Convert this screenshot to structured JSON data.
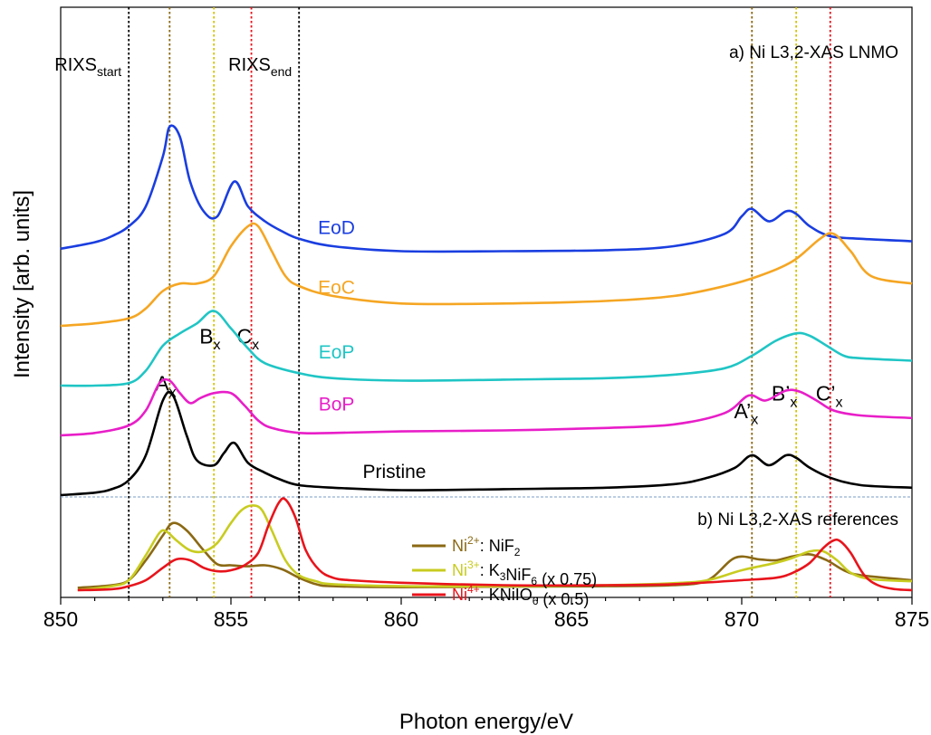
{
  "chart_data": {
    "type": "line",
    "xlabel": "Photon energy/eV",
    "ylabel": "Intensity [arb. units]",
    "xlim": [
      850,
      875
    ],
    "xticks": [
      850,
      855,
      860,
      865,
      870,
      875
    ],
    "y_ticks_shown": false,
    "grid": false,
    "panel_a_title": "a) Ni L3,2-XAS LNMO",
    "panel_b_title": "b) Ni L3,2-XAS references",
    "rixs_start": {
      "x": 852.0,
      "base": "RIXS",
      "sub": "start"
    },
    "rixs_end": {
      "x": 857.0,
      "base": "RIXS",
      "sub": "end"
    },
    "vlines": [
      {
        "x": 852.0,
        "color": "#000000"
      },
      {
        "x": 853.2,
        "color": "#8b6914"
      },
      {
        "x": 854.5,
        "color": "#d4c400"
      },
      {
        "x": 855.6,
        "color": "#e8141c"
      },
      {
        "x": 857.0,
        "color": "#000000"
      },
      {
        "x": 870.3,
        "color": "#8b6914"
      },
      {
        "x": 871.6,
        "color": "#d4c400"
      },
      {
        "x": 872.6,
        "color": "#e8141c"
      }
    ],
    "peak_labels": [
      {
        "id": "Ax",
        "base": "A",
        "sub": "x",
        "x": 853.2,
        "offset": 2.1
      },
      {
        "id": "Bx",
        "base": "B",
        "sub": "x",
        "x": 854.5,
        "offset": 3.05
      },
      {
        "id": "Cx",
        "base": "C",
        "sub": "x",
        "x": 855.6,
        "offset": 3.05
      },
      {
        "id": "A'x",
        "base": "A’",
        "sub": "x",
        "x": 870.2,
        "offset": 1.55
      },
      {
        "id": "B'x",
        "base": "B’",
        "sub": "x",
        "x": 871.3,
        "offset": 1.9
      },
      {
        "id": "C'x",
        "base": "C’",
        "sub": "x",
        "x": 872.6,
        "offset": 1.9
      }
    ],
    "series": [
      {
        "name": "EoD",
        "panel": "a",
        "color": "#1a3ee0",
        "offset": 4.6,
        "x": [
          850.0,
          851.0,
          851.5,
          852.0,
          852.5,
          853.0,
          853.2,
          853.5,
          853.8,
          854.2,
          854.6,
          855.1,
          855.5,
          856.0,
          856.5,
          857.0,
          858.0,
          860.0,
          863.0,
          866.0,
          868.0,
          869.5,
          870.0,
          870.3,
          870.8,
          871.3,
          871.6,
          872.0,
          872.6,
          873.5,
          875.0
        ],
        "y": [
          0.35,
          0.48,
          0.6,
          0.8,
          1.2,
          2.2,
          2.8,
          2.6,
          1.7,
          1.1,
          1.0,
          1.7,
          1.2,
          0.9,
          0.7,
          0.55,
          0.4,
          0.3,
          0.3,
          0.32,
          0.4,
          0.65,
          1.0,
          1.15,
          0.9,
          1.1,
          1.05,
          0.8,
          0.6,
          0.55,
          0.5
        ]
      },
      {
        "name": "EoC",
        "panel": "a",
        "color": "#f5a623",
        "offset": 3.4,
        "x": [
          850.0,
          851.0,
          852.0,
          852.5,
          853.0,
          853.5,
          854.0,
          854.5,
          855.0,
          855.5,
          855.8,
          856.2,
          856.6,
          857.0,
          858.0,
          860.0,
          863.0,
          866.0,
          868.0,
          869.5,
          870.5,
          871.5,
          872.3,
          872.7,
          873.2,
          873.8,
          875.0
        ],
        "y": [
          0.0,
          0.05,
          0.15,
          0.35,
          0.7,
          0.85,
          0.85,
          1.0,
          1.6,
          2.0,
          2.0,
          1.5,
          1.0,
          0.8,
          0.6,
          0.45,
          0.45,
          0.5,
          0.6,
          0.8,
          1.0,
          1.3,
          1.75,
          1.85,
          1.5,
          1.0,
          0.85
        ]
      },
      {
        "name": "EoP",
        "panel": "a",
        "color": "#20c5c5",
        "offset": 2.2,
        "x": [
          850.0,
          851.0,
          852.0,
          852.5,
          853.0,
          853.5,
          854.0,
          854.5,
          855.0,
          855.5,
          856.0,
          857.0,
          858.0,
          860.0,
          863.0,
          866.0,
          868.0,
          869.5,
          870.3,
          871.0,
          871.6,
          872.0,
          872.5,
          873.0,
          873.5,
          875.0
        ],
        "y": [
          0.0,
          0.0,
          0.05,
          0.3,
          0.8,
          1.05,
          1.25,
          1.5,
          1.15,
          0.75,
          0.45,
          0.25,
          0.15,
          0.1,
          0.12,
          0.15,
          0.22,
          0.35,
          0.6,
          0.9,
          1.05,
          1.0,
          0.8,
          0.6,
          0.55,
          0.5
        ]
      },
      {
        "name": "BoP",
        "panel": "a",
        "color": "#e81ec8",
        "offset": 1.2,
        "x": [
          850.0,
          851.0,
          852.0,
          852.5,
          852.9,
          853.2,
          853.5,
          853.8,
          854.1,
          854.5,
          855.0,
          855.4,
          855.8,
          856.2,
          857.0,
          858.0,
          860.0,
          863.0,
          866.0,
          868.0,
          869.5,
          870.2,
          870.7,
          871.3,
          871.7,
          872.2,
          872.7,
          873.5,
          875.0
        ],
        "y": [
          0.0,
          0.05,
          0.2,
          0.5,
          1.05,
          1.1,
          0.85,
          0.65,
          0.75,
          0.85,
          0.85,
          0.6,
          0.3,
          0.15,
          0.05,
          0.05,
          0.08,
          0.1,
          0.15,
          0.22,
          0.45,
          0.8,
          0.7,
          0.9,
          0.88,
          0.7,
          0.5,
          0.4,
          0.35
        ]
      },
      {
        "name": "Pristine",
        "panel": "a",
        "color": "#000000",
        "offset": 0.0,
        "x": [
          850.0,
          851.0,
          851.5,
          852.0,
          852.5,
          853.0,
          853.3,
          853.7,
          854.0,
          854.5,
          854.8,
          855.1,
          855.5,
          856.0,
          856.5,
          857.0,
          858.0,
          860.0,
          863.0,
          866.0,
          868.0,
          869.0,
          869.8,
          870.3,
          870.8,
          871.3,
          871.6,
          872.0,
          872.6,
          873.5,
          875.0
        ],
        "y": [
          0.0,
          0.05,
          0.12,
          0.3,
          0.8,
          1.9,
          2.0,
          1.2,
          0.7,
          0.6,
          0.85,
          1.05,
          0.65,
          0.45,
          0.3,
          0.2,
          0.15,
          0.1,
          0.12,
          0.15,
          0.22,
          0.35,
          0.55,
          0.8,
          0.6,
          0.8,
          0.75,
          0.55,
          0.35,
          0.2,
          0.15
        ]
      },
      {
        "name": "NiF2",
        "panel": "b",
        "color": "#8b6914",
        "offset": 0.0,
        "ion": "Ni",
        "ion_sup": "2+",
        "formula": [
          [
            "NiF",
            ""
          ],
          [
            "2",
            "sub"
          ]
        ],
        "note": "",
        "x": [
          850.5,
          851.5,
          852.0,
          852.5,
          853.0,
          853.3,
          853.7,
          854.2,
          854.6,
          855.0,
          855.5,
          856.0,
          856.5,
          857.0,
          857.5,
          858.0,
          860.0,
          863.0,
          866.0,
          868.0,
          869.0,
          869.8,
          870.5,
          871.0,
          871.5,
          872.0,
          872.5,
          873.0,
          873.5,
          875.0
        ],
        "y": [
          0.05,
          0.1,
          0.2,
          0.6,
          1.1,
          1.35,
          1.2,
          0.8,
          0.52,
          0.5,
          0.48,
          0.5,
          0.42,
          0.25,
          0.12,
          0.08,
          0.06,
          0.07,
          0.08,
          0.1,
          0.2,
          0.65,
          0.62,
          0.6,
          0.68,
          0.72,
          0.6,
          0.4,
          0.3,
          0.2
        ]
      },
      {
        "name": "K3NiF6",
        "panel": "b",
        "color": "#c8cc20",
        "offset": 0.0,
        "ion": "Ni",
        "ion_sup": "3+",
        "formula": [
          [
            "K",
            ""
          ],
          [
            "3",
            "sub"
          ],
          [
            "NiF",
            ""
          ],
          [
            "6",
            "sub"
          ]
        ],
        "note": " (x 0.75)",
        "x": [
          850.5,
          851.5,
          852.0,
          852.5,
          852.9,
          853.1,
          853.4,
          853.8,
          854.2,
          854.6,
          855.0,
          855.3,
          855.6,
          855.9,
          856.2,
          856.6,
          857.0,
          857.5,
          858.0,
          860.0,
          863.0,
          866.0,
          868.0,
          869.0,
          870.0,
          871.0,
          871.5,
          872.0,
          872.4,
          872.8,
          873.2,
          873.8,
          875.0
        ],
        "y": [
          0.0,
          0.08,
          0.2,
          0.7,
          1.15,
          1.18,
          1.0,
          0.8,
          0.78,
          0.95,
          1.35,
          1.6,
          1.7,
          1.62,
          1.2,
          0.6,
          0.3,
          0.18,
          0.12,
          0.08,
          0.08,
          0.1,
          0.14,
          0.2,
          0.4,
          0.55,
          0.65,
          0.78,
          0.78,
          0.6,
          0.35,
          0.22,
          0.18
        ]
      },
      {
        "name": "KNiIO6",
        "panel": "b",
        "color": "#e8141c",
        "offset": 0.0,
        "ion": "Ni",
        "ion_sup": "4+",
        "formula": [
          [
            "KNiIO",
            ""
          ],
          [
            "6",
            "sub"
          ]
        ],
        "note": " (x 0.5)",
        "x": [
          850.5,
          851.5,
          852.0,
          852.5,
          853.0,
          853.4,
          853.8,
          854.2,
          854.6,
          855.0,
          855.4,
          855.8,
          856.1,
          856.4,
          856.6,
          856.9,
          857.2,
          857.6,
          858.0,
          858.5,
          860.0,
          863.0,
          866.0,
          868.0,
          870.0,
          871.0,
          871.5,
          872.0,
          872.4,
          872.7,
          872.9,
          873.2,
          873.6,
          874.0,
          874.5,
          875.0
        ],
        "y": [
          0.0,
          0.02,
          0.08,
          0.2,
          0.45,
          0.62,
          0.6,
          0.45,
          0.38,
          0.4,
          0.5,
          0.75,
          1.3,
          1.75,
          1.82,
          1.45,
          0.8,
          0.4,
          0.25,
          0.2,
          0.15,
          0.1,
          0.1,
          0.12,
          0.2,
          0.25,
          0.35,
          0.55,
          0.85,
          1.0,
          0.98,
          0.75,
          0.3,
          0.1,
          0.02,
          0.0
        ]
      }
    ]
  }
}
